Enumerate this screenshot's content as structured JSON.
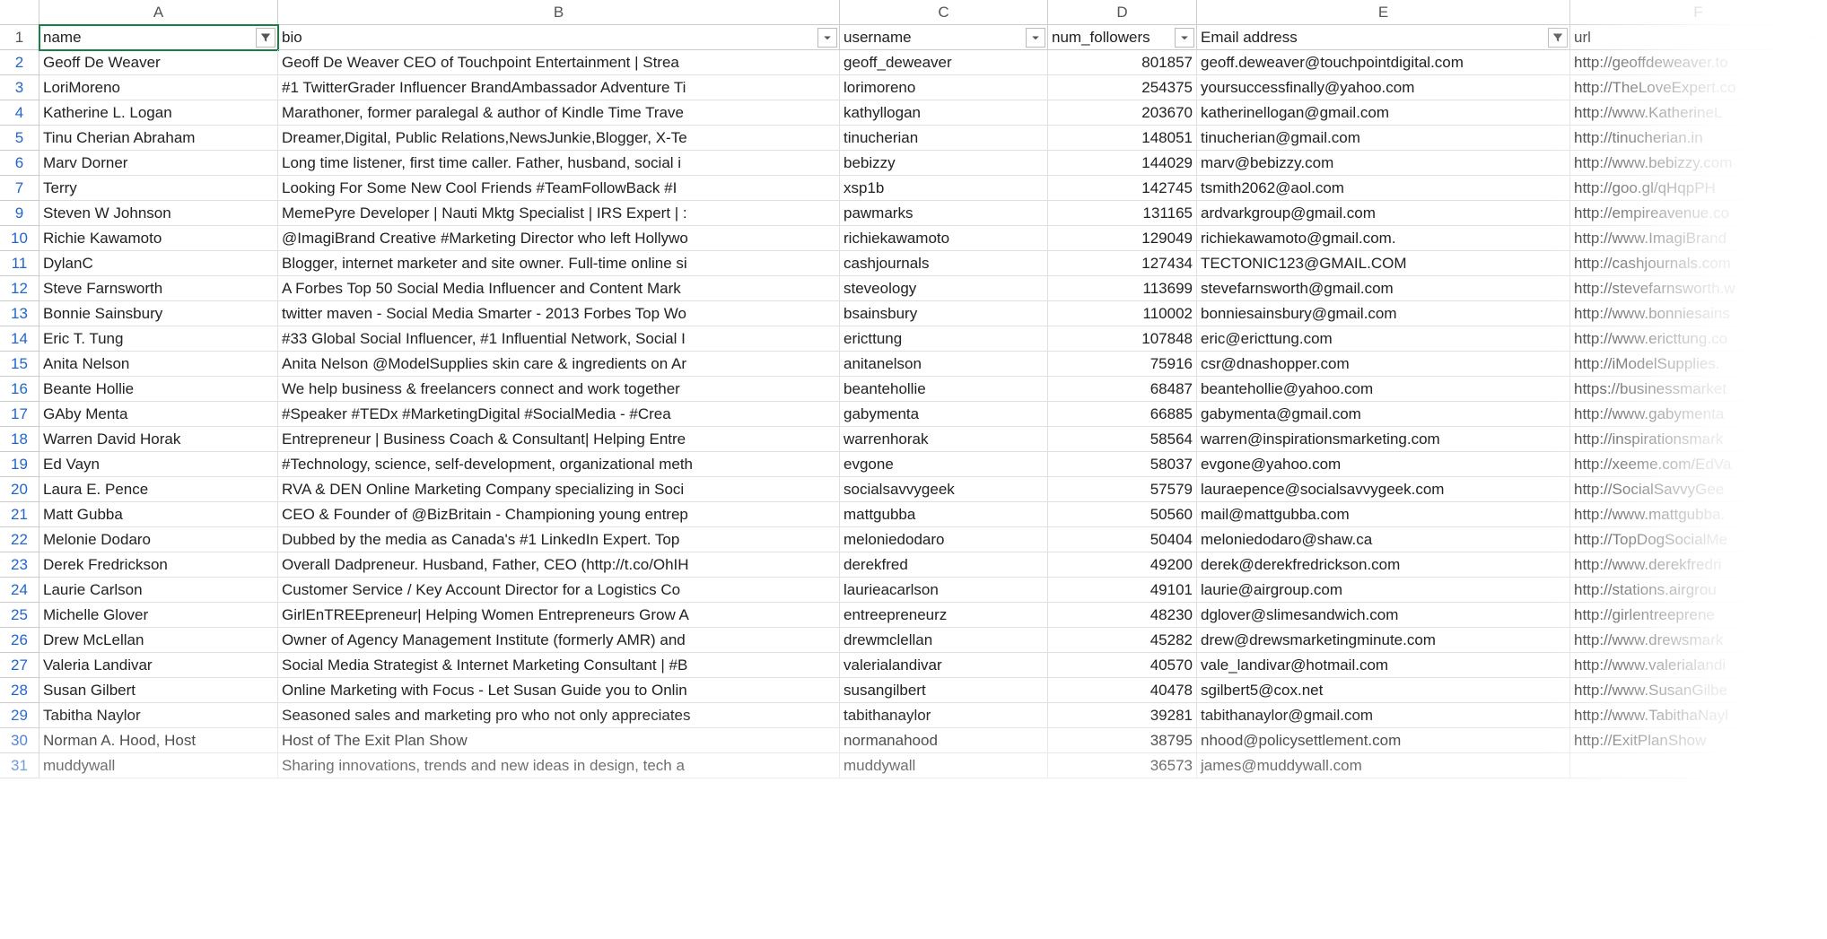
{
  "columns": [
    {
      "letter": "A",
      "label": "name",
      "filter_active": true
    },
    {
      "letter": "B",
      "label": "bio",
      "filter_active": false
    },
    {
      "letter": "C",
      "label": "username",
      "filter_active": false
    },
    {
      "letter": "D",
      "label": "num_followers",
      "filter_active": false
    },
    {
      "letter": "E",
      "label": "Email address",
      "filter_active": true
    },
    {
      "letter": "F",
      "label": "url",
      "filter_active": false
    }
  ],
  "active_cell": "A1",
  "colors": {
    "grid_border": "#e0e0e0",
    "header_border": "#cccccc",
    "row_number": "#2266cc",
    "active_outline": "#1a7f45",
    "text": "#222222"
  },
  "rows": [
    {
      "n": 2,
      "name": "Geoff De Weaver",
      "bio": "Geoff De Weaver CEO of Touchpoint Entertainment | Strea",
      "username": "geoff_deweaver",
      "followers": 801857,
      "email": "geoff.deweaver@touchpointdigital.com",
      "url": "http://geoffdeweaver.to"
    },
    {
      "n": 3,
      "name": "LoriMoreno",
      "bio": "#1 TwitterGrader Influencer BrandAmbassador Adventure Ti",
      "username": "lorimoreno",
      "followers": 254375,
      "email": "yoursuccessfinally@yahoo.com",
      "url": "http://TheLoveExpert.co"
    },
    {
      "n": 4,
      "name": "Katherine L. Logan",
      "bio": "Marathoner, former paralegal & author of Kindle Time Trave",
      "username": "kathyllogan",
      "followers": 203670,
      "email": "katherinellogan@gmail.com",
      "url": "http://www.KatherineL"
    },
    {
      "n": 5,
      "name": "Tinu Cherian Abraham",
      "bio": "Dreamer,Digital, Public Relations,NewsJunkie,Blogger, X-Te",
      "username": "tinucherian",
      "followers": 148051,
      "email": "tinucherian@gmail.com",
      "url": "http://tinucherian.in"
    },
    {
      "n": 6,
      "name": "Marv Dorner",
      "bio": "Long time listener, first time caller.  Father, husband, social i",
      "username": "bebizzy",
      "followers": 144029,
      "email": "marv@bebizzy.com",
      "url": "http://www.bebizzy.com"
    },
    {
      "n": 7,
      "name": "Terry",
      "bio": "Looking For Some New Cool Friends  #TeamFollowBack  #I",
      "username": "xsp1b",
      "followers": 142745,
      "email": "tsmith2062@aol.com",
      "url": "http://goo.gl/qHqpPH"
    },
    {
      "n": 9,
      "name": "Steven W Johnson",
      "bio": "MemePyre Developer | Nauti Mktg Specialist | IRS Expert | :",
      "username": "pawmarks",
      "followers": 131165,
      "email": "ardvarkgroup@gmail.com",
      "url": "http://empireavenue.co"
    },
    {
      "n": 10,
      "name": "Richie Kawamoto",
      "bio": "@ImagiBrand Creative #Marketing Director who left Hollywo",
      "username": "richiekawamoto",
      "followers": 129049,
      "email": "richiekawamoto@gmail.com.",
      "url": "http://www.ImagiBrand"
    },
    {
      "n": 11,
      "name": "DylanC",
      "bio": "Blogger, internet marketer and site owner. Full-time online si",
      "username": "cashjournals",
      "followers": 127434,
      "email": "TECTONIC123@GMAIL.COM",
      "url": "http://cashjournals.com"
    },
    {
      "n": 12,
      "name": "Steve Farnsworth",
      "bio": "A Forbes Top 50 Social Media Influencer and Content Mark",
      "username": "steveology",
      "followers": 113699,
      "email": "stevefarnsworth@gmail.com",
      "url": "http://stevefarnsworth.w"
    },
    {
      "n": 13,
      "name": "Bonnie Sainsbury",
      "bio": "twitter maven - Social Media Smarter - 2013 Forbes Top Wo",
      "username": "bsainsbury",
      "followers": 110002,
      "email": "bonniesainsbury@gmail.com",
      "url": "http://www.bonniesains"
    },
    {
      "n": 14,
      "name": "Eric T. Tung",
      "bio": "#33 Global Social Influencer, #1 Influential Network, Social I",
      "username": "ericttung",
      "followers": 107848,
      "email": "eric@ericttung.com",
      "url": "http://www.ericttung.co"
    },
    {
      "n": 15,
      "name": "Anita Nelson",
      "bio": "Anita Nelson @ModelSupplies skin care & ingredients on Ar",
      "username": "anitanelson",
      "followers": 75916,
      "email": "csr@dnashopper.com",
      "url": "http://iModelSupplies."
    },
    {
      "n": 16,
      "name": "Beante Hollie",
      "bio": "We help business & freelancers connect and work together",
      "username": "beantehollie",
      "followers": 68487,
      "email": "beantehollie@yahoo.com",
      "url": "https://businessmarket"
    },
    {
      "n": 17,
      "name": "GAby Menta",
      "bio": "#Speaker #TEDx  #MarketingDigital   #SocialMedia -  #Crea",
      "username": "gabymenta",
      "followers": 66885,
      "email": "gabymenta@gmail.com",
      "url": "http://www.gabymenta"
    },
    {
      "n": 18,
      "name": "Warren David Horak",
      "bio": "Entrepreneur | Business Coach & Consultant| Helping Entre",
      "username": "warrenhorak",
      "followers": 58564,
      "email": "warren@inspirationsmarketing.com",
      "url": "http://inspirationsmark"
    },
    {
      "n": 19,
      "name": "Ed Vayn",
      "bio": "#Technology, science, self-development, organizational meth",
      "username": "evgone",
      "followers": 58037,
      "email": "evgone@yahoo.com",
      "url": "http://xeeme.com/EdVa"
    },
    {
      "n": 20,
      "name": "Laura E. Pence",
      "bio": "RVA & DEN Online Marketing Company specializing in Soci",
      "username": "socialsavvygeek",
      "followers": 57579,
      "email": "lauraepence@socialsavvygeek.com",
      "url": "http://SocialSavvyGee"
    },
    {
      "n": 21,
      "name": "Matt Gubba",
      "bio": "CEO & Founder of @BizBritain - Championing young entrep",
      "username": "mattgubba",
      "followers": 50560,
      "email": "mail@mattgubba.com",
      "url": "http://www.mattgubba."
    },
    {
      "n": 22,
      "name": "Melonie Dodaro",
      "bio": "Dubbed by the media as Canada's #1 LinkedIn Expert. Top",
      "username": "meloniedodaro",
      "followers": 50404,
      "email": "meloniedodaro@shaw.ca",
      "url": "http://TopDogSocialMe"
    },
    {
      "n": 23,
      "name": "Derek Fredrickson",
      "bio": "Overall Dadpreneur. Husband, Father, CEO (http://t.co/OhIH",
      "username": "derekfred",
      "followers": 49200,
      "email": "derek@derekfredrickson.com",
      "url": "http://www.derekfredri"
    },
    {
      "n": 24,
      "name": "Laurie Carlson",
      "bio": "Customer Service / Key Account Director for a Logistics Co",
      "username": "laurieacarlson",
      "followers": 49101,
      "email": "laurie@airgroup.com",
      "url": "http://stations.airgrou"
    },
    {
      "n": 25,
      "name": "Michelle Glover",
      "bio": "GirlEnTREEpreneur| Helping Women Entrepreneurs Grow A",
      "username": "entreepreneurz",
      "followers": 48230,
      "email": "dglover@slimesandwich.com",
      "url": "http://girlentreeprene"
    },
    {
      "n": 26,
      "name": "Drew McLellan",
      "bio": "Owner of Agency Management Institute (formerly AMR) and",
      "username": "drewmclellan",
      "followers": 45282,
      "email": "drew@drewsmarketingminute.com",
      "url": "http://www.drewsmark"
    },
    {
      "n": 27,
      "name": "Valeria Landivar",
      "bio": "Social Media Strategist & Internet Marketing Consultant | #B",
      "username": "valerialandivar",
      "followers": 40570,
      "email": "vale_landivar@hotmail.com",
      "url": "http://www.valerialandi"
    },
    {
      "n": 28,
      "name": "Susan Gilbert",
      "bio": "Online Marketing with Focus - Let Susan Guide you to Onlin",
      "username": "susangilbert",
      "followers": 40478,
      "email": "sgilbert5@cox.net",
      "url": "http://www.SusanGilbe"
    },
    {
      "n": 29,
      "name": "Tabitha Naylor",
      "bio": "Seasoned sales and marketing pro who not only appreciates",
      "username": "tabithanaylor",
      "followers": 39281,
      "email": "tabithanaylor@gmail.com",
      "url": "http://www.TabithaNayl"
    },
    {
      "n": 30,
      "name": "Norman A. Hood, Host",
      "bio": "Host of The Exit Plan Show",
      "username": "normanahood",
      "followers": 38795,
      "email": "nhood@policysettlement.com",
      "url": "http://ExitPlanShow"
    },
    {
      "n": 31,
      "name": "muddywall",
      "bio": "Sharing innovations, trends and new ideas in design, tech a",
      "username": "muddywall",
      "followers": 36573,
      "email": "james@muddywall.com",
      "url": ""
    }
  ]
}
